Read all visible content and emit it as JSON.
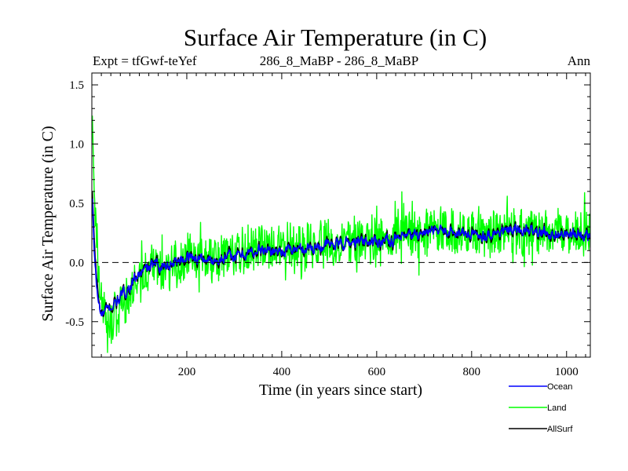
{
  "chart_data": {
    "type": "line",
    "title": "Surface Air Temperature (in C)",
    "subtitle_left": "Expt = tfGwf-teYef",
    "subtitle_center": "286_8_MaBP - 286_8_MaBP",
    "subtitle_right": "Ann",
    "xlabel": "Time (in years since start)",
    "ylabel": "Surface Air Temperature (in C)",
    "xlim": [
      0,
      1050
    ],
    "ylim": [
      -0.8,
      1.6
    ],
    "x_ticks": [
      200,
      400,
      600,
      800,
      1000
    ],
    "x_tick_labels": [
      "200",
      "400",
      "600",
      "800",
      "1000"
    ],
    "y_ticks": [
      -0.5,
      0.0,
      0.5,
      1.0,
      1.5
    ],
    "y_tick_labels": [
      "-0.5",
      "0.0",
      "0.5",
      "1.0",
      "1.5"
    ],
    "zero_line": true,
    "legend_position": "bottom-right",
    "series": [
      {
        "name": "Land",
        "color": "#00ff00",
        "anchors": [
          [
            0,
            1.4
          ],
          [
            5,
            0.6
          ],
          [
            15,
            -0.15
          ],
          [
            30,
            -0.55
          ],
          [
            50,
            -0.45
          ],
          [
            80,
            -0.25
          ],
          [
            120,
            -0.1
          ],
          [
            160,
            -0.02
          ],
          [
            200,
            0.05
          ],
          [
            250,
            0.02
          ],
          [
            300,
            0.08
          ],
          [
            350,
            0.12
          ],
          [
            400,
            0.12
          ],
          [
            450,
            0.14
          ],
          [
            500,
            0.16
          ],
          [
            550,
            0.18
          ],
          [
            600,
            0.2
          ],
          [
            650,
            0.22
          ],
          [
            700,
            0.26
          ],
          [
            750,
            0.27
          ],
          [
            800,
            0.25
          ],
          [
            850,
            0.26
          ],
          [
            900,
            0.28
          ],
          [
            950,
            0.26
          ],
          [
            1000,
            0.25
          ],
          [
            1050,
            0.25
          ]
        ],
        "noise_amplitude": 0.18,
        "y_range_observed": [
          -0.78,
          1.4
        ]
      },
      {
        "name": "Ocean",
        "color": "#0000ff",
        "anchors": [
          [
            0,
            0.65
          ],
          [
            5,
            0.1
          ],
          [
            12,
            -0.3
          ],
          [
            20,
            -0.45
          ],
          [
            40,
            -0.38
          ],
          [
            60,
            -0.3
          ],
          [
            80,
            -0.2
          ],
          [
            100,
            -0.1
          ],
          [
            130,
            -0.02
          ],
          [
            160,
            -0.02
          ],
          [
            200,
            0.05
          ],
          [
            250,
            0.02
          ],
          [
            300,
            0.05
          ],
          [
            350,
            0.1
          ],
          [
            400,
            0.1
          ],
          [
            450,
            0.12
          ],
          [
            500,
            0.15
          ],
          [
            550,
            0.17
          ],
          [
            600,
            0.18
          ],
          [
            650,
            0.2
          ],
          [
            700,
            0.25
          ],
          [
            750,
            0.27
          ],
          [
            800,
            0.23
          ],
          [
            850,
            0.25
          ],
          [
            900,
            0.28
          ],
          [
            950,
            0.25
          ],
          [
            1000,
            0.24
          ],
          [
            1050,
            0.22
          ]
        ],
        "noise_amplitude": 0.06,
        "y_range_observed": [
          -0.52,
          0.67
        ]
      },
      {
        "name": "AllSurf",
        "color": "#000000",
        "anchors": [
          [
            0,
            0.7
          ],
          [
            5,
            0.2
          ],
          [
            12,
            -0.25
          ],
          [
            20,
            -0.45
          ],
          [
            40,
            -0.38
          ],
          [
            60,
            -0.3
          ],
          [
            80,
            -0.2
          ],
          [
            100,
            -0.1
          ],
          [
            130,
            -0.02
          ],
          [
            160,
            -0.02
          ],
          [
            200,
            0.05
          ],
          [
            250,
            0.02
          ],
          [
            300,
            0.05
          ],
          [
            350,
            0.1
          ],
          [
            400,
            0.1
          ],
          [
            450,
            0.12
          ],
          [
            500,
            0.15
          ],
          [
            550,
            0.17
          ],
          [
            600,
            0.18
          ],
          [
            650,
            0.2
          ],
          [
            700,
            0.25
          ],
          [
            750,
            0.27
          ],
          [
            800,
            0.23
          ],
          [
            850,
            0.25
          ],
          [
            900,
            0.28
          ],
          [
            950,
            0.25
          ],
          [
            1000,
            0.24
          ],
          [
            1050,
            0.22
          ]
        ],
        "noise_amplitude": 0.07,
        "y_range_observed": [
          -0.5,
          0.7
        ]
      }
    ]
  }
}
